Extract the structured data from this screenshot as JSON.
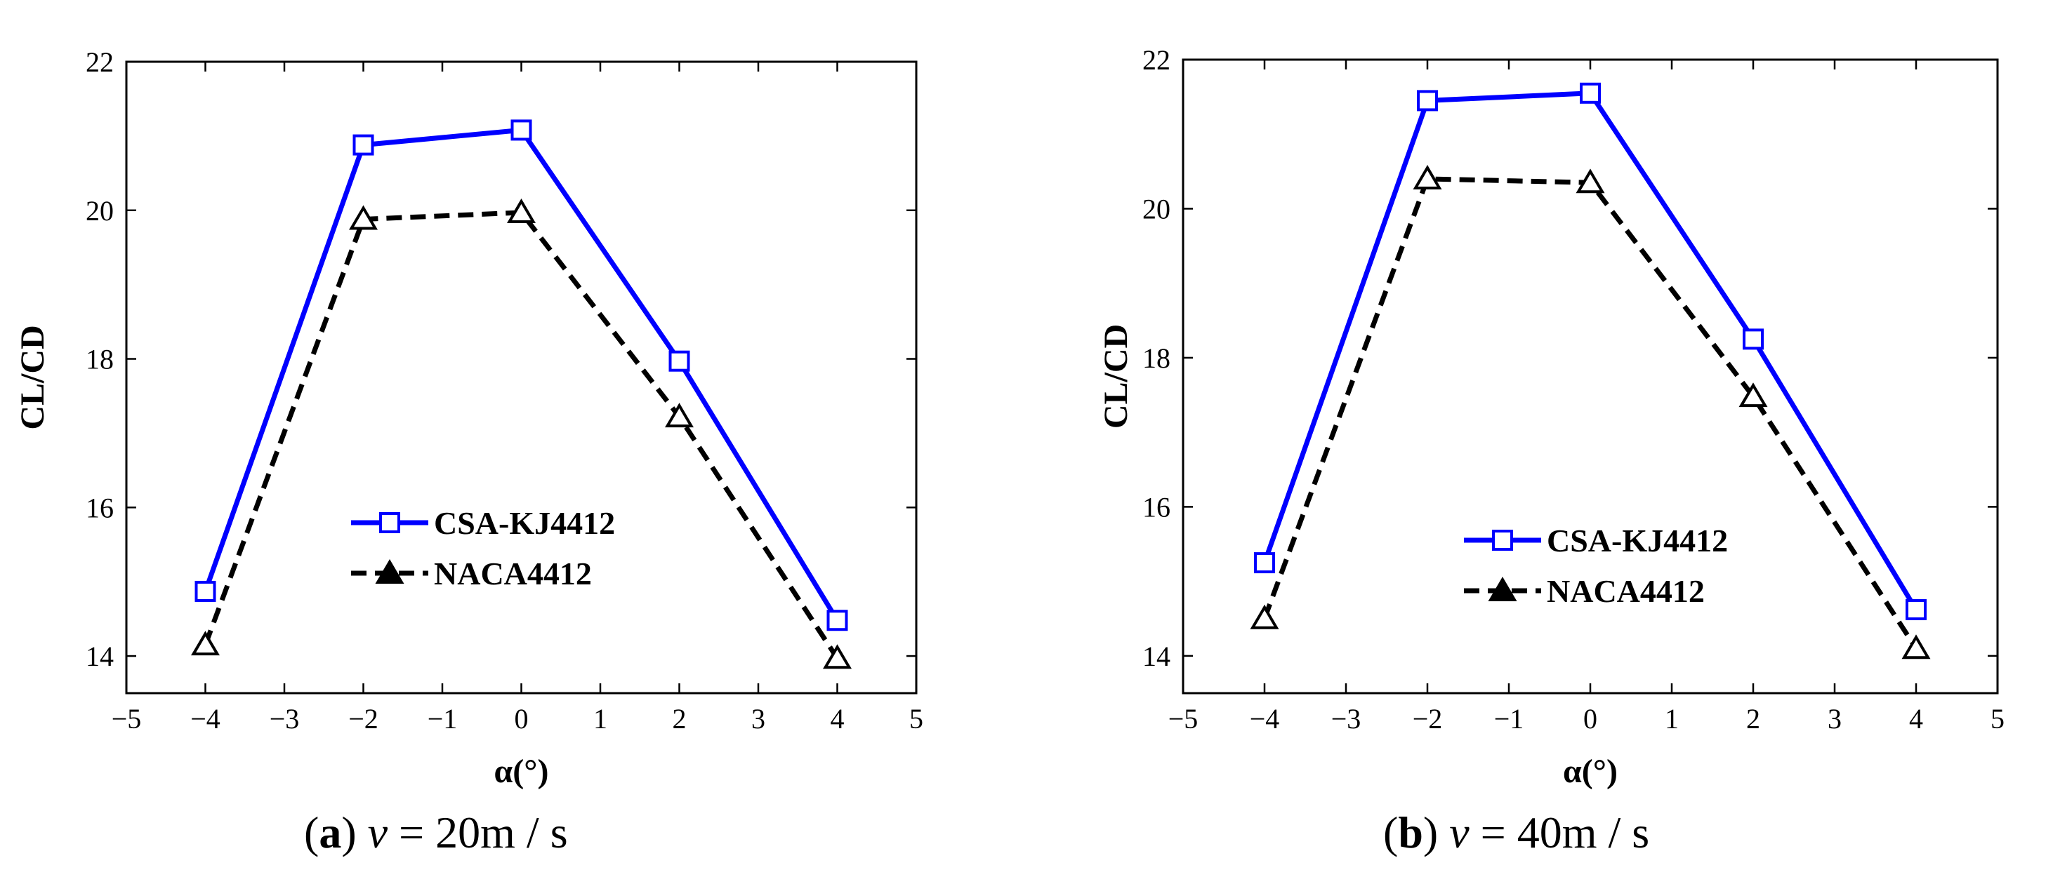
{
  "chart_data": [
    {
      "type": "line",
      "panel_label": "a",
      "caption": {
        "var": "v",
        "rest": "= 20m / s"
      },
      "xlabel": "α(°)",
      "ylabel": "CL/CD",
      "xlim": [
        -5,
        5
      ],
      "ylim": [
        13.5,
        22
      ],
      "xticks": [
        -5,
        -4,
        -3,
        -2,
        -1,
        0,
        1,
        2,
        3,
        4,
        5
      ],
      "yticks": [
        14,
        16,
        18,
        20,
        22
      ],
      "xtick_labels": [
        "−5",
        "−4",
        "−3",
        "−2",
        "−1",
        "0",
        "1",
        "2",
        "3",
        "4",
        "5"
      ],
      "ytick_labels": [
        "14",
        "16",
        "18",
        "20",
        "22"
      ],
      "legend_position": "lower-center",
      "x": [
        -4,
        -2,
        0,
        2,
        4
      ],
      "series": [
        {
          "name": "CSA-KJ4412",
          "values": [
            14.87,
            20.88,
            21.08,
            17.97,
            14.48
          ],
          "color": "#0000ff",
          "marker": "square",
          "style": "solid"
        },
        {
          "name": "NACA4412",
          "values": [
            14.15,
            19.88,
            19.97,
            17.22,
            13.97
          ],
          "color": "#000000",
          "marker": "triangle",
          "style": "dashed"
        }
      ]
    },
    {
      "type": "line",
      "panel_label": "b",
      "caption": {
        "var": "v",
        "rest": "= 40m / s"
      },
      "xlabel": "α(°)",
      "ylabel": "CL/CD",
      "xlim": [
        -5,
        5
      ],
      "ylim": [
        13.5,
        22
      ],
      "xticks": [
        -5,
        -4,
        -3,
        -2,
        -1,
        0,
        1,
        2,
        3,
        4,
        5
      ],
      "yticks": [
        14,
        16,
        18,
        20,
        22
      ],
      "xtick_labels": [
        "−5",
        "−4",
        "−3",
        "−2",
        "−1",
        "0",
        "1",
        "2",
        "3",
        "4",
        "5"
      ],
      "ytick_labels": [
        "14",
        "16",
        "18",
        "20",
        "22"
      ],
      "legend_position": "lower-center",
      "x": [
        -4,
        -2,
        0,
        2,
        4
      ],
      "series": [
        {
          "name": "CSA-KJ4412",
          "values": [
            15.25,
            21.45,
            21.55,
            18.25,
            14.62
          ],
          "color": "#0000ff",
          "marker": "square",
          "style": "solid"
        },
        {
          "name": "NACA4412",
          "values": [
            14.5,
            20.4,
            20.35,
            17.48,
            14.1
          ],
          "color": "#000000",
          "marker": "triangle",
          "style": "dashed"
        }
      ]
    }
  ]
}
